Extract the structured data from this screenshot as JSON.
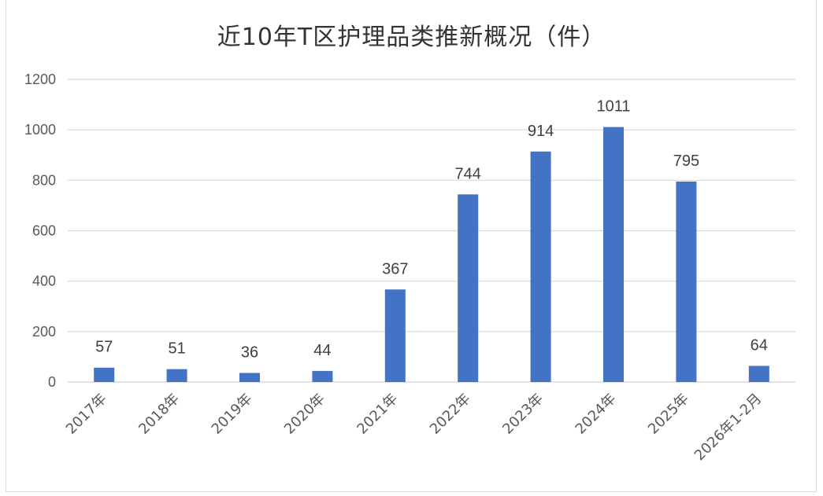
{
  "chart_data": {
    "type": "bar",
    "title": "近10年T区护理品类推新概况（件）",
    "xlabel": "",
    "ylabel": "",
    "categories": [
      "2017年",
      "2018年",
      "2019年",
      "2020年",
      "2021年",
      "2022年",
      "2023年",
      "2024年",
      "2025年",
      "2026年1-2月"
    ],
    "values": [
      57,
      51,
      36,
      44,
      367,
      744,
      914,
      1011,
      795,
      64
    ],
    "ylim": [
      0,
      1200
    ],
    "yticks": [
      0,
      200,
      400,
      600,
      800,
      1000,
      1200
    ],
    "grid": true,
    "legend": null,
    "data_labels": true,
    "bar_color": "#4472c4",
    "gridline_color": "#d9d9d9"
  }
}
